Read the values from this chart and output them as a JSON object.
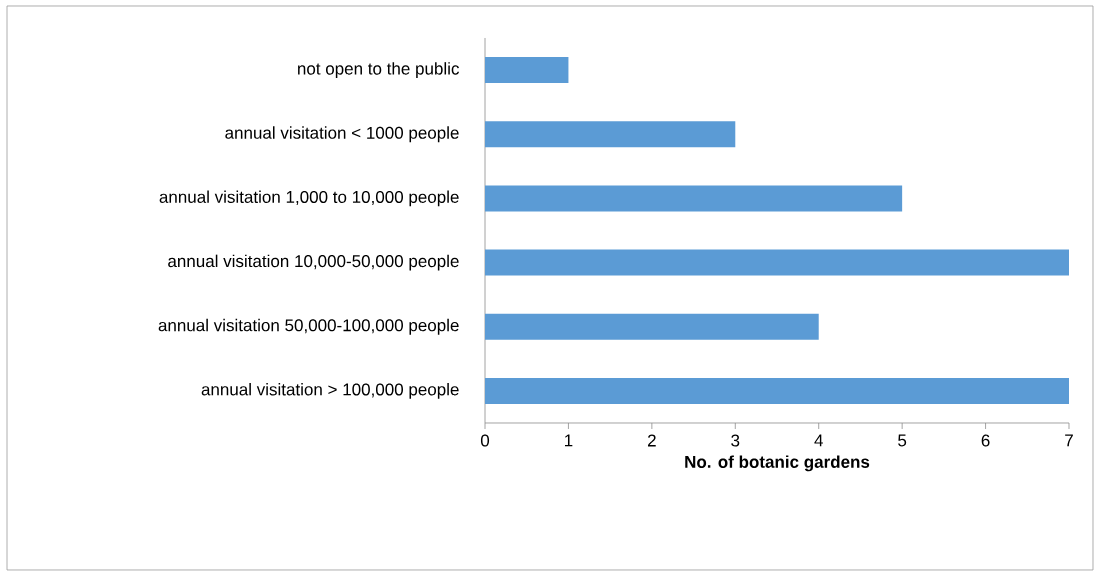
{
  "chart_data": {
    "type": "bar",
    "orientation": "horizontal",
    "xlabel": "No. of botanic gardens",
    "categories": [
      "not open to the public",
      "annual visitation < 1000 people",
      "annual visitation 1,000 to 10,000 people",
      "annual visitation 10,000-50,000 people",
      "annual visitation 50,000-100,000 people",
      "annual visitation > 100,000 people"
    ],
    "values": [
      1,
      3,
      5,
      7,
      4,
      7
    ],
    "color": "#5b9bd5",
    "xlim": [
      0,
      7
    ],
    "xticks": [
      0,
      1,
      2,
      3,
      4,
      5,
      6,
      7
    ]
  }
}
